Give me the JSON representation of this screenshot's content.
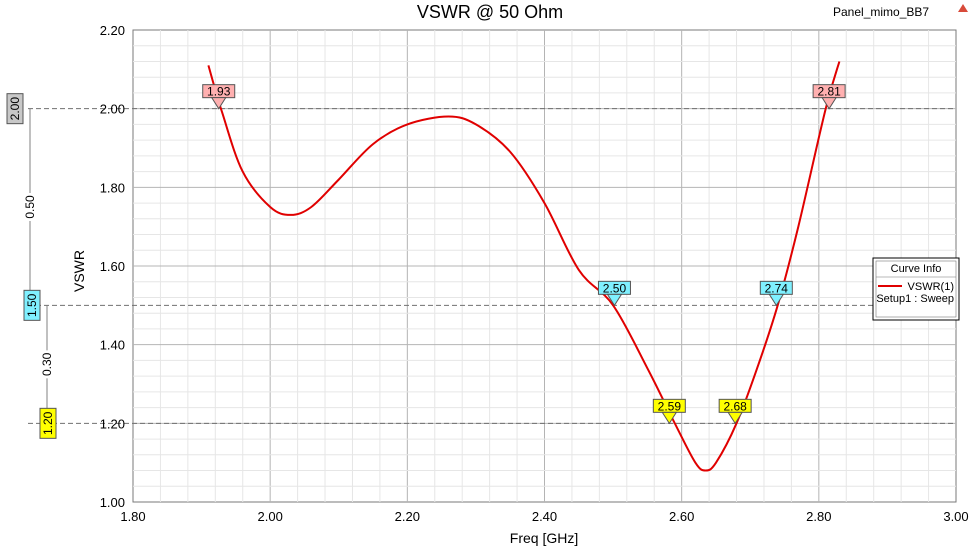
{
  "project_name": "Panel_mimo_BB7",
  "chart_data": {
    "type": "line",
    "title": "VSWR @ 50 Ohm",
    "xlabel": "Freq [GHz]",
    "ylabel": "VSWR",
    "xlim": [
      1.8,
      3.0
    ],
    "ylim": [
      1.0,
      2.2
    ],
    "x_ticks": [
      "1.80",
      "2.00",
      "2.20",
      "2.40",
      "2.60",
      "2.80",
      "3.00"
    ],
    "y_ticks": [
      "1.00",
      "1.20",
      "1.40",
      "1.60",
      "1.80",
      "2.00",
      "2.20"
    ],
    "grid": true,
    "series": [
      {
        "name": "VSWR(1)",
        "color": "#e00000",
        "x": [
          1.91,
          1.93,
          1.96,
          2.0,
          2.03,
          2.06,
          2.1,
          2.15,
          2.2,
          2.26,
          2.3,
          2.35,
          2.4,
          2.45,
          2.5,
          2.55,
          2.59,
          2.62,
          2.635,
          2.65,
          2.68,
          2.71,
          2.74,
          2.77,
          2.81,
          2.83
        ],
        "y": [
          2.11,
          1.99,
          1.84,
          1.75,
          1.73,
          1.75,
          1.82,
          1.91,
          1.96,
          1.98,
          1.96,
          1.89,
          1.76,
          1.59,
          1.5,
          1.34,
          1.2,
          1.1,
          1.08,
          1.1,
          1.2,
          1.34,
          1.5,
          1.7,
          2.0,
          2.12
        ]
      }
    ],
    "markers": [
      {
        "label": "1.93",
        "x": 1.925,
        "y": 2.0,
        "color": "#ffb0b0"
      },
      {
        "label": "2.81",
        "x": 2.815,
        "y": 2.0,
        "color": "#ffb0b0"
      },
      {
        "label": "2.50",
        "x": 2.502,
        "y": 1.5,
        "color": "#7ff0ff"
      },
      {
        "label": "2.74",
        "x": 2.738,
        "y": 1.5,
        "color": "#7ff0ff"
      },
      {
        "label": "2.59",
        "x": 2.582,
        "y": 1.2,
        "color": "#ffff00"
      },
      {
        "label": "2.68",
        "x": 2.678,
        "y": 1.2,
        "color": "#ffff00"
      }
    ],
    "reference_lines": [
      2.0,
      1.5,
      1.2
    ],
    "side_scale": {
      "boxes": [
        {
          "label": "2.00",
          "value": 2.0,
          "color": "#c8c8c8"
        },
        {
          "label": "1.50",
          "value": 1.5,
          "color": "#7ff0ff"
        },
        {
          "label": "1.20",
          "value": 1.2,
          "color": "#ffff00"
        }
      ],
      "deltas": [
        {
          "label": "0.50",
          "from": 2.0,
          "to": 1.5
        },
        {
          "label": "0.30",
          "from": 1.5,
          "to": 1.2
        }
      ]
    },
    "legend": {
      "position": "right",
      "title": "Curve Info",
      "entry": "VSWR(1)",
      "sub": "Setup1 : Sweep"
    }
  }
}
